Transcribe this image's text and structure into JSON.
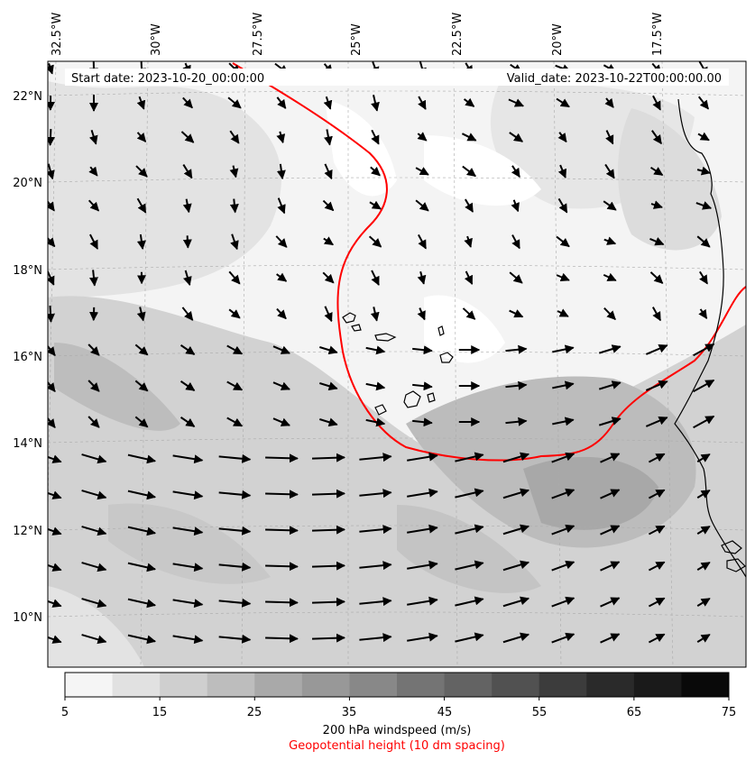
{
  "figure": {
    "start_date": "Start date: 2023-10-20_00:00:00",
    "valid_date": "Valid_date: 2023-10-22T00:00:00.00",
    "colorbar_label": "200 hPa windspeed (m/s)",
    "contour_label": "Geopotential height (10 dm spacing)"
  },
  "map": {
    "lon_labels": [
      "32.5°W",
      "30°W",
      "27.5°W",
      "25°W",
      "22.5°W",
      "20°W",
      "17.5°W"
    ],
    "lat_labels": [
      "22°N",
      "20°N",
      "18°N",
      "16°N",
      "14°N",
      "12°N",
      "10°N"
    ],
    "contour_color": "#ff0000",
    "coast_color": "#000000",
    "vector_color": "#000000"
  },
  "colorbar": {
    "ticks": [
      "5",
      "15",
      "25",
      "35",
      "45",
      "55",
      "65",
      "75"
    ],
    "levels": [
      5,
      10,
      15,
      20,
      25,
      30,
      35,
      40,
      45,
      50,
      55,
      60,
      65,
      70,
      75
    ],
    "colors": [
      "#f5f5f5",
      "#e1e1e1",
      "#cfcfcf",
      "#bdbdbd",
      "#a9a9a9",
      "#989898",
      "#888888",
      "#747474",
      "#636363",
      "#515151",
      "#3c3c3c",
      "#2a2a2a",
      "#1a1a1a",
      "#090909"
    ]
  }
}
